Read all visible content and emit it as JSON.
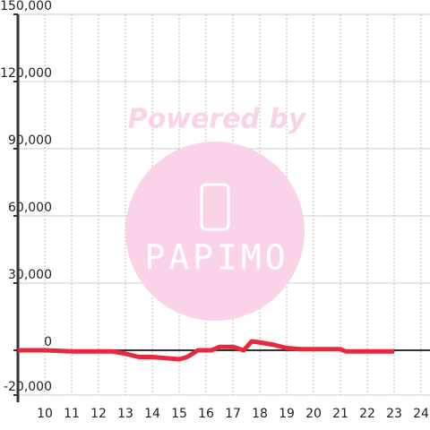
{
  "chart_data": {
    "type": "line",
    "watermark_text": "Powered by",
    "watermark_logo": "PAPIMO",
    "x": [
      9,
      10,
      11,
      12,
      12.5,
      13,
      13.5,
      14,
      14.5,
      15,
      15.3,
      15.7,
      16.2,
      16.5,
      17,
      17.4,
      17.7,
      18,
      18.5,
      19,
      19.5,
      20,
      21,
      21.2,
      22,
      23
    ],
    "series": [
      {
        "color": "#e8283c",
        "values": [
          0,
          0,
          -500,
          -500,
          -500,
          -1500,
          -3000,
          -3000,
          -3500,
          -4000,
          -3000,
          0,
          0,
          1500,
          1500,
          0,
          4000,
          3500,
          2500,
          1000,
          500,
          500,
          500,
          -500,
          -500,
          -500
        ]
      }
    ],
    "xlim": [
      9,
      24.4
    ],
    "xticks": [
      10,
      11,
      12,
      13,
      14,
      15,
      16,
      17,
      18,
      19,
      20,
      21,
      22,
      23,
      24
    ],
    "ylim": [
      -20000,
      150000
    ],
    "yticks": [
      {
        "value": -20000,
        "label": "-20,000"
      },
      0,
      {
        "value": 30000,
        "label": "30,000"
      },
      {
        "value": 60000,
        "label": "60,000"
      },
      {
        "value": 90000,
        "label": "90,000"
      },
      {
        "value": 120000,
        "label": "120,000"
      },
      {
        "value": 150000,
        "label": "150,000"
      }
    ],
    "grid": true
  }
}
